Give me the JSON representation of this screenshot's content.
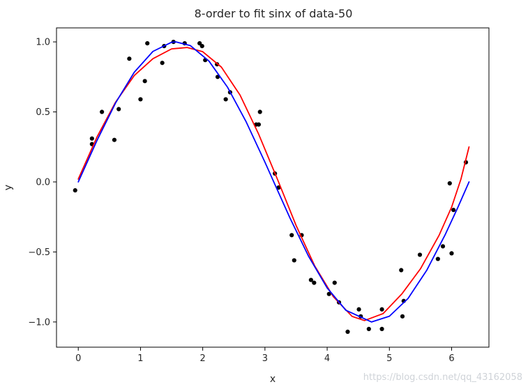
{
  "chart_data": {
    "type": "scatter",
    "title": "8-order to fit sinx of data-50",
    "xlabel": "x",
    "ylabel": "y",
    "xlim": [
      -0.35,
      6.6
    ],
    "ylim": [
      -1.18,
      1.1
    ],
    "xticks": [
      0,
      1,
      2,
      3,
      4,
      5,
      6
    ],
    "yticks": [
      -1.0,
      -0.5,
      0.0,
      0.5,
      1.0
    ],
    "xtick_labels": [
      "0",
      "1",
      "2",
      "3",
      "4",
      "5",
      "6"
    ],
    "ytick_labels": [
      "−1.0",
      "−0.5",
      "0.0",
      "0.5",
      "1.0"
    ],
    "grid": false,
    "series": [
      {
        "kind": "scatter",
        "color": "#000000",
        "points": [
          [
            -0.05,
            -0.06
          ],
          [
            0.22,
            0.31
          ],
          [
            0.22,
            0.27
          ],
          [
            0.38,
            0.5
          ],
          [
            0.58,
            0.3
          ],
          [
            0.65,
            0.52
          ],
          [
            0.82,
            0.88
          ],
          [
            1.0,
            0.59
          ],
          [
            1.07,
            0.72
          ],
          [
            1.11,
            0.99
          ],
          [
            1.35,
            0.85
          ],
          [
            1.38,
            0.97
          ],
          [
            1.53,
            1.0
          ],
          [
            1.71,
            0.99
          ],
          [
            1.95,
            0.99
          ],
          [
            1.99,
            0.97
          ],
          [
            2.04,
            0.87
          ],
          [
            2.23,
            0.84
          ],
          [
            2.24,
            0.75
          ],
          [
            2.37,
            0.59
          ],
          [
            2.44,
            0.64
          ],
          [
            2.86,
            0.41
          ],
          [
            2.9,
            0.41
          ],
          [
            2.92,
            0.5
          ],
          [
            3.16,
            0.06
          ],
          [
            3.22,
            -0.04
          ],
          [
            3.43,
            -0.38
          ],
          [
            3.47,
            -0.56
          ],
          [
            3.59,
            -0.38
          ],
          [
            3.74,
            -0.7
          ],
          [
            3.79,
            -0.72
          ],
          [
            4.03,
            -0.8
          ],
          [
            4.12,
            -0.72
          ],
          [
            4.19,
            -0.86
          ],
          [
            4.33,
            -1.07
          ],
          [
            4.51,
            -0.91
          ],
          [
            4.54,
            -0.96
          ],
          [
            4.67,
            -1.05
          ],
          [
            4.88,
            -0.91
          ],
          [
            4.88,
            -1.05
          ],
          [
            5.19,
            -0.63
          ],
          [
            5.21,
            -0.96
          ],
          [
            5.23,
            -0.85
          ],
          [
            5.49,
            -0.52
          ],
          [
            5.78,
            -0.55
          ],
          [
            5.86,
            -0.46
          ],
          [
            5.97,
            -0.01
          ],
          [
            6.0,
            -0.51
          ],
          [
            6.03,
            -0.2
          ],
          [
            6.23,
            0.14
          ]
        ]
      },
      {
        "kind": "line",
        "color": "#ff0000",
        "x": [
          0.0,
          0.3,
          0.6,
          0.9,
          1.2,
          1.5,
          1.75,
          2.0,
          2.3,
          2.6,
          2.9,
          3.2,
          3.5,
          3.8,
          4.1,
          4.4,
          4.6,
          4.9,
          5.2,
          5.5,
          5.8,
          6.0,
          6.15,
          6.28
        ],
        "y": [
          0.02,
          0.32,
          0.57,
          0.76,
          0.88,
          0.95,
          0.96,
          0.93,
          0.82,
          0.62,
          0.34,
          0.02,
          -0.31,
          -0.6,
          -0.82,
          -0.96,
          -0.99,
          -0.94,
          -0.8,
          -0.62,
          -0.38,
          -0.18,
          0.02,
          0.25
        ]
      },
      {
        "kind": "line",
        "color": "#0000ff",
        "x": [
          0.0,
          0.3,
          0.6,
          0.9,
          1.2,
          1.5,
          1.571,
          1.8,
          2.1,
          2.4,
          2.7,
          3.0,
          3.142,
          3.4,
          3.7,
          4.0,
          4.3,
          4.712,
          5.0,
          5.3,
          5.6,
          5.9,
          6.1,
          6.28
        ],
        "y": [
          0.0,
          0.2955,
          0.5646,
          0.7833,
          0.932,
          0.9975,
          1.0,
          0.9738,
          0.8632,
          0.6755,
          0.4274,
          0.1411,
          0.0,
          -0.2555,
          -0.5298,
          -0.7568,
          -0.9162,
          -1.0,
          -0.9589,
          -0.8323,
          -0.6313,
          -0.3738,
          -0.1822,
          0.0
        ]
      }
    ]
  },
  "watermark": "https://blog.csdn.net/qq_43162058"
}
